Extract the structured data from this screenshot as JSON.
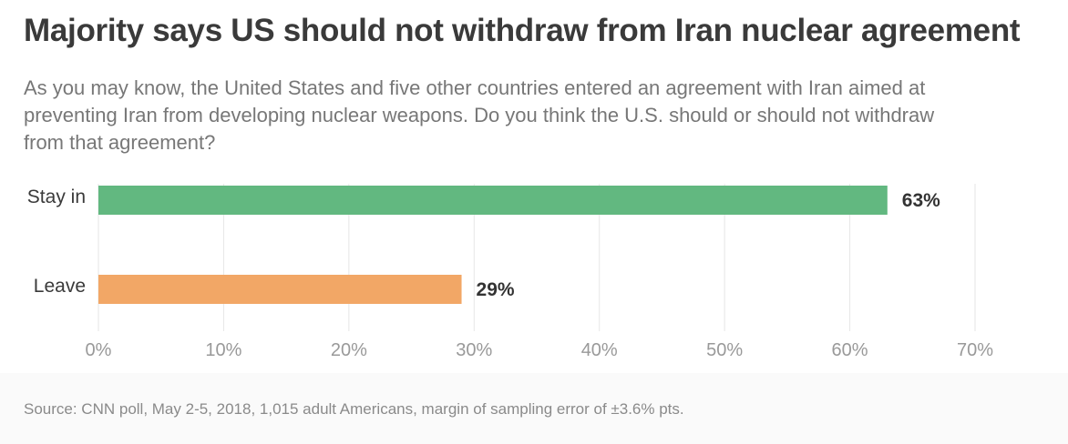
{
  "title": "Majority says US should not withdraw from Iran nuclear agreement",
  "subtitle": "As you may know, the United States and five other countries entered an agreement with Iran aimed at preventing Iran from developing nuclear weapons. Do you think the U.S. should or should not withdraw from that agreement?",
  "source": "Source: CNN poll, May 2-5, 2018, 1,015 adult Americans, margin of sampling error of ±3.6% pts.",
  "chart_data": {
    "type": "bar",
    "orientation": "horizontal",
    "categories": [
      "Stay in",
      "Leave"
    ],
    "values": [
      63,
      29
    ],
    "value_labels": [
      "63%",
      "29%"
    ],
    "colors": [
      "#62b880",
      "#f2a766"
    ],
    "xlim": [
      0,
      70
    ],
    "xticks": [
      0,
      10,
      20,
      30,
      40,
      50,
      60,
      70
    ],
    "xtick_labels": [
      "0%",
      "10%",
      "20%",
      "30%",
      "40%",
      "50%",
      "60%",
      "70%"
    ],
    "grid": true
  }
}
